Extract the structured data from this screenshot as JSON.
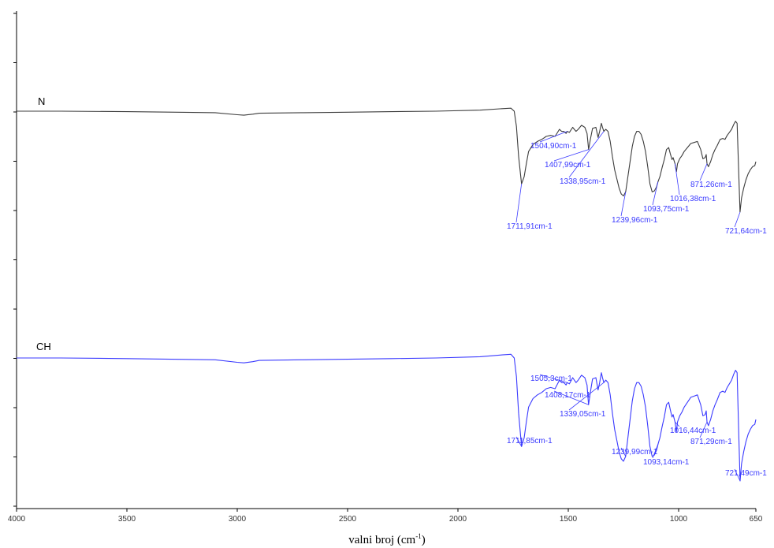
{
  "chart_data": {
    "type": "line",
    "xlabel": "valni broj (cm",
    "xlabel_sup": "-1",
    "xlabel_close": ")",
    "xlim": [
      4000,
      650
    ],
    "x_reversed": true,
    "xticks": [
      4000,
      3500,
      3000,
      2500,
      2000,
      1500,
      1000,
      650
    ],
    "grid": false,
    "colors": {
      "N": "#3c3c3c",
      "CH": "#3a3aff",
      "peak_label": "#3a3aff"
    },
    "series": [
      {
        "name": "N",
        "x": [
          4000,
          3800,
          3500,
          3100,
          3000,
          2970,
          2930,
          2900,
          2700,
          2500,
          2300,
          2100,
          1900,
          1800,
          1760,
          1745,
          1735,
          1725,
          1711.91,
          1700,
          1690,
          1680,
          1660,
          1640,
          1620,
          1600,
          1580,
          1560,
          1540,
          1530,
          1520,
          1510,
          1504.9,
          1495,
          1480,
          1465,
          1455,
          1440,
          1425,
          1415,
          1407.99,
          1400,
          1390,
          1375,
          1365,
          1358,
          1350,
          1345,
          1338.95,
          1330,
          1320,
          1310,
          1300,
          1290,
          1280,
          1270,
          1260,
          1250,
          1239.96,
          1230,
          1220,
          1210,
          1200,
          1190,
          1180,
          1170,
          1160,
          1150,
          1140,
          1130,
          1120,
          1110,
          1100,
          1093.75,
          1085,
          1075,
          1065,
          1055,
          1045,
          1038,
          1030,
          1025,
          1016.38,
          1010,
          1005,
          995,
          985,
          975,
          960,
          945,
          930,
          915,
          900,
          890,
          880,
          875,
          871.26,
          865,
          855,
          845,
          835,
          825,
          812,
          800,
          790,
          780,
          770,
          760,
          750,
          742,
          735,
          728,
          721.64,
          715,
          705,
          695,
          685,
          675,
          665,
          655,
          650
        ],
        "y": [
          0.0,
          0.0,
          0.005,
          0.015,
          0.035,
          0.04,
          0.03,
          0.02,
          0.015,
          0.01,
          0.005,
          0.0,
          -0.01,
          -0.025,
          -0.03,
          0.0,
          0.15,
          0.45,
          0.72,
          0.65,
          0.52,
          0.4,
          0.33,
          0.3,
          0.28,
          0.25,
          0.24,
          0.25,
          0.18,
          0.2,
          0.2,
          0.22,
          0.2,
          0.21,
          0.16,
          0.2,
          0.18,
          0.14,
          0.16,
          0.22,
          0.38,
          0.28,
          0.17,
          0.16,
          0.26,
          0.2,
          0.12,
          0.16,
          0.2,
          0.18,
          0.2,
          0.3,
          0.45,
          0.58,
          0.67,
          0.76,
          0.82,
          0.84,
          0.8,
          0.65,
          0.5,
          0.35,
          0.25,
          0.2,
          0.2,
          0.23,
          0.3,
          0.4,
          0.55,
          0.72,
          0.8,
          0.79,
          0.75,
          0.7,
          0.65,
          0.56,
          0.48,
          0.38,
          0.36,
          0.42,
          0.48,
          0.46,
          0.52,
          0.6,
          0.52,
          0.47,
          0.44,
          0.4,
          0.36,
          0.32,
          0.31,
          0.3,
          0.38,
          0.47,
          0.46,
          0.43,
          0.52,
          0.55,
          0.5,
          0.43,
          0.38,
          0.34,
          0.28,
          0.27,
          0.28,
          0.24,
          0.21,
          0.18,
          0.13,
          0.1,
          0.12,
          0.6,
          1.0,
          0.86,
          0.76,
          0.68,
          0.62,
          0.58,
          0.55,
          0.54,
          0.5
        ]
      },
      {
        "name": "CH",
        "x": [
          4000,
          3800,
          3500,
          3100,
          3000,
          2970,
          2930,
          2900,
          2700,
          2500,
          2300,
          2100,
          1900,
          1800,
          1760,
          1745,
          1735,
          1725,
          1711.85,
          1700,
          1690,
          1680,
          1660,
          1640,
          1620,
          1600,
          1580,
          1560,
          1540,
          1530,
          1520,
          1510,
          1505.3,
          1495,
          1480,
          1465,
          1455,
          1440,
          1425,
          1415,
          1408.17,
          1400,
          1390,
          1375,
          1365,
          1358,
          1350,
          1345,
          1339.05,
          1330,
          1320,
          1310,
          1300,
          1290,
          1280,
          1270,
          1260,
          1250,
          1239.99,
          1230,
          1220,
          1210,
          1200,
          1190,
          1180,
          1170,
          1160,
          1150,
          1140,
          1130,
          1120,
          1110,
          1100,
          1093.14,
          1085,
          1075,
          1065,
          1055,
          1045,
          1038,
          1030,
          1025,
          1016.44,
          1010,
          1005,
          995,
          985,
          975,
          960,
          945,
          930,
          915,
          900,
          890,
          880,
          875,
          871.29,
          865,
          855,
          845,
          835,
          825,
          812,
          800,
          790,
          780,
          770,
          760,
          750,
          742,
          735,
          728,
          721.49,
          715,
          705,
          695,
          685,
          675,
          665,
          655,
          650
        ],
        "y": [
          0.0,
          0.0,
          0.005,
          0.015,
          0.035,
          0.04,
          0.03,
          0.02,
          0.015,
          0.01,
          0.005,
          0.0,
          -0.01,
          -0.025,
          -0.03,
          0.0,
          0.15,
          0.45,
          0.72,
          0.65,
          0.52,
          0.4,
          0.33,
          0.3,
          0.28,
          0.25,
          0.24,
          0.25,
          0.18,
          0.2,
          0.2,
          0.22,
          0.2,
          0.21,
          0.16,
          0.2,
          0.18,
          0.14,
          0.16,
          0.22,
          0.38,
          0.28,
          0.17,
          0.16,
          0.26,
          0.2,
          0.12,
          0.16,
          0.2,
          0.18,
          0.2,
          0.3,
          0.45,
          0.58,
          0.67,
          0.76,
          0.82,
          0.84,
          0.8,
          0.65,
          0.5,
          0.35,
          0.25,
          0.2,
          0.2,
          0.23,
          0.3,
          0.4,
          0.55,
          0.72,
          0.8,
          0.79,
          0.75,
          0.7,
          0.65,
          0.56,
          0.48,
          0.38,
          0.36,
          0.42,
          0.48,
          0.46,
          0.52,
          0.6,
          0.52,
          0.47,
          0.44,
          0.4,
          0.36,
          0.32,
          0.31,
          0.3,
          0.38,
          0.47,
          0.46,
          0.43,
          0.52,
          0.55,
          0.5,
          0.43,
          0.38,
          0.34,
          0.28,
          0.27,
          0.28,
          0.24,
          0.21,
          0.18,
          0.13,
          0.1,
          0.12,
          0.6,
          1.0,
          0.86,
          0.76,
          0.68,
          0.62,
          0.58,
          0.55,
          0.54,
          0.5
        ]
      }
    ],
    "annotations": [
      {
        "series": "N",
        "x": 1711.91,
        "text": "1711,91cm-1"
      },
      {
        "series": "N",
        "x": 1504.9,
        "text": "1504,90cm-1"
      },
      {
        "series": "N",
        "x": 1407.99,
        "text": "1407,99cm-1"
      },
      {
        "series": "N",
        "x": 1338.95,
        "text": "1338,95cm-1"
      },
      {
        "series": "N",
        "x": 1239.96,
        "text": "1239,96cm-1"
      },
      {
        "series": "N",
        "x": 1093.75,
        "text": "1093,75cm-1"
      },
      {
        "series": "N",
        "x": 1016.38,
        "text": "1016,38cm-1"
      },
      {
        "series": "N",
        "x": 871.26,
        "text": "871,26cm-1"
      },
      {
        "series": "N",
        "x": 721.64,
        "text": "721,64cm-1"
      },
      {
        "series": "CH",
        "x": 1711.85,
        "text": "1711,85cm-1"
      },
      {
        "series": "CH",
        "x": 1505.3,
        "text": "1505,3cm-1"
      },
      {
        "series": "CH",
        "x": 1408.17,
        "text": "1408,17cm-1"
      },
      {
        "series": "CH",
        "x": 1339.05,
        "text": "1339,05cm-1"
      },
      {
        "series": "CH",
        "x": 1239.99,
        "text": "1239,99cm-1"
      },
      {
        "series": "CH",
        "x": 1093.14,
        "text": "1093,14cm-1"
      },
      {
        "series": "CH",
        "x": 1016.44,
        "text": "1016,44cm-1"
      },
      {
        "series": "CH",
        "x": 871.29,
        "text": "871,29cm-1"
      },
      {
        "series": "CH",
        "x": 721.49,
        "text": "721,49cm-1"
      }
    ]
  }
}
